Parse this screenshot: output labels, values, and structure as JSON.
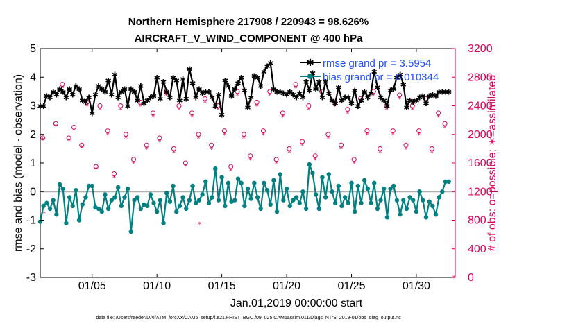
{
  "chart_data": {
    "type": "line",
    "title": "Northern Hemisphere 217908 / 220943 = 98.626%",
    "subtitle": "AIRCRAFT_V_WIND_COMPONENT @ 400 hPa",
    "xlabel": "Jan.01,2019 00:00:00 start",
    "ylabel": "rmse and bias (model - observation)",
    "ylabel_right": "# of obs: o=possible; ∗=assimilated",
    "footnote": "data file: /Users/raeder/DAI/ATM_forcXX/CAM6_setup/f.e21.FHIST_BGC.f09_025.CAM6assim.011/Diags_NTrS_2019-01/obs_diag_output.nc",
    "xlim": [
      1,
      33
    ],
    "ylim": [
      -3,
      5
    ],
    "ylim_right": [
      0,
      3200
    ],
    "xticks": [
      5,
      10,
      15,
      20,
      25,
      30
    ],
    "xtick_labels": [
      "01/05",
      "01/10",
      "01/15",
      "01/20",
      "01/25",
      "01/30"
    ],
    "yticks": [
      -3,
      -2,
      -1,
      0,
      1,
      2,
      3,
      4,
      5
    ],
    "yticks_right": [
      0,
      400,
      800,
      1200,
      1600,
      2000,
      2400,
      2800,
      3200
    ],
    "grid": false,
    "legend_position": "top-right",
    "legend": {
      "rmse_label": "rmse grand pr = 3.5954",
      "bias_label": "bias grand pr = 0.010344"
    },
    "colors": {
      "rmse": "#000000",
      "bias": "#008080",
      "obs": "#d6005b",
      "zero_line": "#b0b0b0",
      "legend_text": "#1f4fff"
    },
    "series": [
      {
        "name": "rmse",
        "axis": "left",
        "x": [
          1.0,
          1.25,
          1.5,
          1.75,
          2.0,
          2.25,
          2.5,
          2.75,
          3.0,
          3.25,
          3.5,
          3.75,
          4.0,
          4.25,
          4.5,
          4.75,
          5.0,
          5.25,
          5.5,
          5.75,
          6.0,
          6.25,
          6.5,
          6.75,
          7.0,
          7.25,
          7.5,
          7.75,
          8.0,
          8.25,
          8.5,
          8.75,
          9.0,
          9.25,
          9.5,
          9.75,
          10.0,
          10.25,
          10.5,
          10.75,
          11.0,
          11.25,
          11.5,
          11.75,
          12.0,
          12.25,
          12.5,
          12.75,
          13.0,
          13.25,
          13.5,
          13.75,
          14.0,
          14.25,
          14.5,
          14.75,
          15.0,
          15.25,
          15.5,
          15.75,
          16.0,
          16.25,
          16.5,
          16.75,
          17.0,
          17.25,
          17.5,
          17.75,
          18.0,
          18.25,
          18.5,
          18.75,
          19.0,
          19.25,
          19.5,
          19.75,
          20.0,
          20.25,
          20.5,
          20.75,
          21.0,
          21.25,
          21.5,
          21.75,
          22.0,
          22.25,
          22.5,
          22.75,
          23.0,
          23.25,
          23.5,
          23.75,
          24.0,
          24.25,
          24.5,
          24.75,
          25.0,
          25.25,
          25.5,
          25.75,
          26.0,
          26.25,
          26.5,
          26.75,
          27.0,
          27.25,
          27.5,
          27.75,
          28.0,
          28.25,
          28.5,
          28.75,
          29.0,
          29.25,
          29.5,
          29.75,
          30.0,
          30.25,
          30.5,
          30.75,
          31.0,
          31.25,
          31.5,
          31.75,
          32.0,
          32.25,
          32.5
        ],
        "values": [
          3.0,
          3.0,
          3.35,
          3.3,
          3.5,
          3.4,
          3.6,
          3.5,
          3.3,
          3.6,
          3.4,
          3.7,
          3.6,
          3.2,
          3.15,
          3.3,
          2.75,
          3.4,
          3.7,
          3.6,
          3.5,
          3.9,
          3.4,
          4.1,
          3.3,
          3.5,
          3.6,
          3.0,
          3.6,
          3.5,
          3.2,
          3.7,
          3.1,
          3.2,
          3.3,
          3.35,
          4.0,
          3.25,
          3.85,
          3.5,
          3.3,
          4.0,
          3.9,
          3.2,
          3.95,
          3.25,
          4.3,
          3.8,
          3.3,
          3.6,
          3.45,
          3.5,
          3.5,
          3.3,
          3.0,
          3.4,
          2.7,
          3.9,
          3.7,
          3.35,
          3.6,
          3.8,
          4.0,
          3.55,
          2.95,
          3.3,
          4.05,
          4.0,
          3.7,
          4.2,
          4.4,
          4.5,
          3.6,
          3.5,
          3.5,
          3.45,
          3.4,
          3.5,
          3.4,
          3.3,
          3.45,
          3.3,
          3.85,
          3.55,
          4.15,
          3.6,
          3.85,
          3.3,
          3.85,
          3.45,
          3.2,
          3.1,
          3.65,
          3.2,
          3.3,
          3.3,
          3.1,
          3.55,
          3.0,
          3.2,
          3.5,
          3.3,
          3.45,
          4.2,
          3.65,
          3.3,
          3.2,
          3.0,
          3.55,
          3.6,
          4.0,
          4.1,
          3.75,
          2.95,
          3.2,
          3.15,
          3.2,
          3.3,
          3.35,
          3.1,
          3.35,
          3.4,
          3.35,
          3.5,
          3.5,
          3.5,
          3.5
        ],
        "marker": "asterisk"
      },
      {
        "name": "bias",
        "axis": "left",
        "x": [
          1.0,
          1.25,
          1.5,
          1.75,
          2.0,
          2.25,
          2.5,
          2.75,
          3.0,
          3.25,
          3.5,
          3.75,
          4.0,
          4.25,
          4.5,
          4.75,
          5.0,
          5.25,
          5.5,
          5.75,
          6.0,
          6.25,
          6.5,
          6.75,
          7.0,
          7.25,
          7.5,
          7.75,
          8.0,
          8.25,
          8.5,
          8.75,
          9.0,
          9.25,
          9.5,
          9.75,
          10.0,
          10.25,
          10.5,
          10.75,
          11.0,
          11.25,
          11.5,
          11.75,
          12.0,
          12.25,
          12.5,
          12.75,
          13.0,
          13.25,
          13.5,
          13.75,
          14.0,
          14.25,
          14.5,
          14.75,
          15.0,
          15.25,
          15.5,
          15.75,
          16.0,
          16.25,
          16.5,
          16.75,
          17.0,
          17.25,
          17.5,
          17.75,
          18.0,
          18.25,
          18.5,
          18.75,
          19.0,
          19.25,
          19.5,
          19.75,
          20.0,
          20.25,
          20.5,
          20.75,
          21.0,
          21.25,
          21.5,
          21.75,
          22.0,
          22.25,
          22.5,
          22.75,
          23.0,
          23.25,
          23.5,
          23.75,
          24.0,
          24.25,
          24.5,
          24.75,
          25.0,
          25.25,
          25.5,
          25.75,
          26.0,
          26.25,
          26.5,
          26.75,
          27.0,
          27.25,
          27.5,
          27.75,
          28.0,
          28.25,
          28.5,
          28.75,
          29.0,
          29.25,
          29.5,
          29.75,
          30.0,
          30.25,
          30.5,
          30.75,
          31.0,
          31.25,
          31.5,
          31.75,
          32.0,
          32.25,
          32.5
        ],
        "values": [
          -1.05,
          -0.5,
          -0.4,
          -0.6,
          -0.3,
          -0.8,
          0.25,
          0.1,
          -1.1,
          -0.2,
          -0.5,
          0.05,
          -1.0,
          -0.45,
          -0.2,
          0.2,
          0.2,
          -0.55,
          -0.6,
          -0.7,
          -0.1,
          -0.6,
          -0.3,
          -0.2,
          0.15,
          -0.5,
          -0.2,
          0.1,
          -1.4,
          -0.3,
          -0.2,
          -0.6,
          -0.45,
          -0.5,
          -0.1,
          -0.4,
          -0.7,
          -0.3,
          -1.1,
          -0.05,
          -0.35,
          0.2,
          -0.7,
          -0.5,
          -0.2,
          -0.6,
          -0.3,
          0.2,
          -0.4,
          -0.3,
          -0.1,
          0.35,
          -0.4,
          -0.2,
          0.8,
          -0.3,
          0.5,
          -0.5,
          0.3,
          -0.35,
          -0.3,
          0.45,
          0.3,
          -0.5,
          0.1,
          -0.25,
          0.3,
          -0.2,
          -0.6,
          0.3,
          0.05,
          -0.45,
          0.4,
          -0.7,
          0.6,
          -0.3,
          0.1,
          -0.5,
          -0.3,
          -0.2,
          -0.4,
          0.0,
          -0.6,
          0.95,
          0.65,
          -0.1,
          -0.6,
          0.5,
          -0.2,
          0.6,
          0.0,
          -0.4,
          0.2,
          -0.5,
          -0.2,
          -0.4,
          0.3,
          -0.7,
          0.2,
          -0.4,
          0.4,
          0.1,
          -0.4,
          0.3,
          -0.6,
          -0.3,
          0.1,
          -0.9,
          0.1,
          0.2,
          -0.3,
          -0.8,
          -0.3,
          -0.6,
          -0.2,
          -0.3,
          -0.7,
          0.0,
          -0.3,
          -0.9,
          -0.35,
          -0.5,
          -0.8,
          -0.2,
          0.0,
          0.35,
          0.35
        ]
      },
      {
        "name": "obs_possible",
        "axis": "right",
        "marker": "circle",
        "x": [
          1.2,
          2.2,
          2.7,
          3.2,
          3.6,
          4.2,
          4.6,
          5.3,
          5.6,
          6.2,
          6.7,
          7.2,
          7.6,
          8.2,
          8.7,
          9.2,
          9.7,
          10.2,
          10.7,
          11.3,
          11.7,
          12.2,
          12.7,
          13.2,
          13.7,
          14.2,
          14.7,
          15.2,
          15.7,
          16.2,
          16.7,
          17.2,
          17.7,
          18.2,
          18.7,
          19.2,
          19.7,
          20.2,
          20.7,
          21.2,
          21.7,
          22.2,
          22.7,
          23.2,
          23.7,
          24.2,
          24.7,
          25.2,
          25.7,
          26.2,
          26.7,
          27.2,
          27.7,
          28.2,
          28.7,
          29.2,
          29.7,
          30.2,
          30.7,
          31.2,
          31.7,
          32.2
        ],
        "values": [
          1950,
          2150,
          2700,
          1950,
          2100,
          1850,
          2450,
          1550,
          2400,
          2050,
          1450,
          2400,
          2000,
          1650,
          2450,
          1850,
          2300,
          1950,
          2600,
          1800,
          2400,
          1600,
          2300,
          2000,
          2500,
          1850,
          2400,
          2050,
          1550,
          2600,
          2000,
          1700,
          2450,
          2050,
          2600,
          1650,
          2300,
          1800,
          2700,
          1900,
          2400,
          1700,
          2600,
          2000,
          2450,
          1850,
          2350,
          1650,
          2500,
          2050,
          2600,
          1800,
          2400,
          2050,
          2550,
          1850,
          2400,
          2050,
          2500,
          1800,
          2300,
          2150
        ]
      },
      {
        "name": "obs_assimilated",
        "axis": "right",
        "marker": "asterisk",
        "x": [
          1.2,
          2.2,
          2.7,
          3.2,
          3.6,
          4.2,
          4.6,
          5.3,
          5.6,
          6.2,
          6.7,
          7.2,
          7.6,
          8.2,
          8.7,
          9.2,
          9.7,
          10.2,
          10.7,
          11.3,
          11.7,
          12.2,
          12.7,
          13.2,
          13.7,
          14.2,
          14.7,
          15.2,
          15.7,
          16.2,
          16.7,
          17.2,
          17.7,
          18.2,
          18.7,
          19.2,
          19.7,
          20.2,
          20.7,
          21.2,
          21.7,
          22.2,
          22.7,
          23.2,
          23.7,
          24.2,
          24.7,
          25.2,
          25.7,
          26.2,
          26.7,
          27.2,
          27.7,
          28.2,
          28.7,
          29.2,
          29.7,
          30.2,
          30.7,
          31.2,
          31.7,
          32.2
        ],
        "values": [
          1930,
          2120,
          2650,
          1920,
          2060,
          1820,
          2400,
          1520,
          2350,
          2000,
          1400,
          2350,
          1950,
          1600,
          2400,
          1800,
          2250,
          1900,
          2550,
          1750,
          2350,
          1560,
          2250,
          1950,
          2450,
          1800,
          2350,
          2000,
          1500,
          2550,
          1950,
          1650,
          2400,
          2000,
          2550,
          1600,
          2250,
          1750,
          2650,
          1850,
          2350,
          1650,
          2550,
          1950,
          2400,
          1800,
          2300,
          1600,
          2450,
          2000,
          2550,
          1750,
          2350,
          2000,
          2500,
          1800,
          2350,
          2000,
          2450,
          1750,
          2250,
          2100
        ]
      },
      {
        "name": "obs_extremes",
        "axis": "right",
        "marker": "asterisk",
        "x": [
          1.3,
          13.3,
          32.9
        ],
        "values": [
          900,
          750,
          0
        ]
      }
    ]
  }
}
